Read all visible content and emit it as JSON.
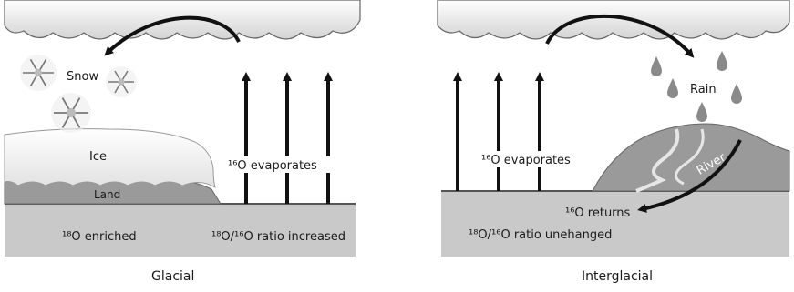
{
  "glacial": {
    "snow_label": "Snow",
    "ice_label": "Ice",
    "land_label": "Land",
    "evaporates_label": "¹⁶O evaporates",
    "enriched_label": "¹⁸O enriched",
    "ratio_label": "¹⁸O/¹⁶O ratio increased",
    "caption": "Glacial"
  },
  "interglacial": {
    "rain_label": "Rain",
    "river_label": "River",
    "evaporates_label": "¹⁶O evaporates",
    "returns_label": "¹⁶O returns",
    "ratio_label": "¹⁸O/¹⁶O ratio unehanged",
    "caption": "Interglacial"
  },
  "colors": {
    "ocean": "#c9c9c9",
    "ocean_line": "#555555",
    "land": "#9a9a9a",
    "ice": "#f4f4f4",
    "cloud": "#eeeeee",
    "arrow": "#111111"
  }
}
